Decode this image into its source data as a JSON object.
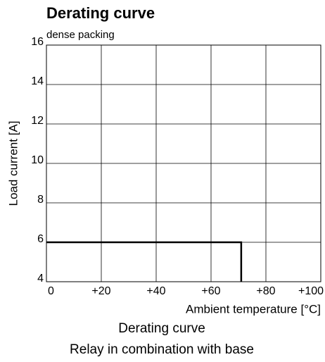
{
  "chart_data": {
    "type": "line",
    "title": "Derating curve",
    "subtitle": "dense packing",
    "ylabel": "Load current [A]",
    "xlabel": "Ambient temperature [°C]",
    "caption": [
      "Derating curve",
      "Relay in combination with base"
    ],
    "x": [
      0,
      71,
      71
    ],
    "values": [
      6,
      6,
      4
    ],
    "color": "#000000",
    "xlim": [
      0,
      100
    ],
    "xticks": [
      0,
      {
        "value": 20,
        "label": "+20"
      },
      {
        "value": 40,
        "label": "+40"
      },
      {
        "value": 60,
        "label": "+60"
      },
      {
        "value": 80,
        "label": "+80"
      },
      {
        "value": 100,
        "label": "+100"
      }
    ],
    "ylim": [
      4,
      16
    ],
    "yticks": [
      4,
      6,
      8,
      10,
      12,
      14,
      16
    ],
    "grid": true
  }
}
